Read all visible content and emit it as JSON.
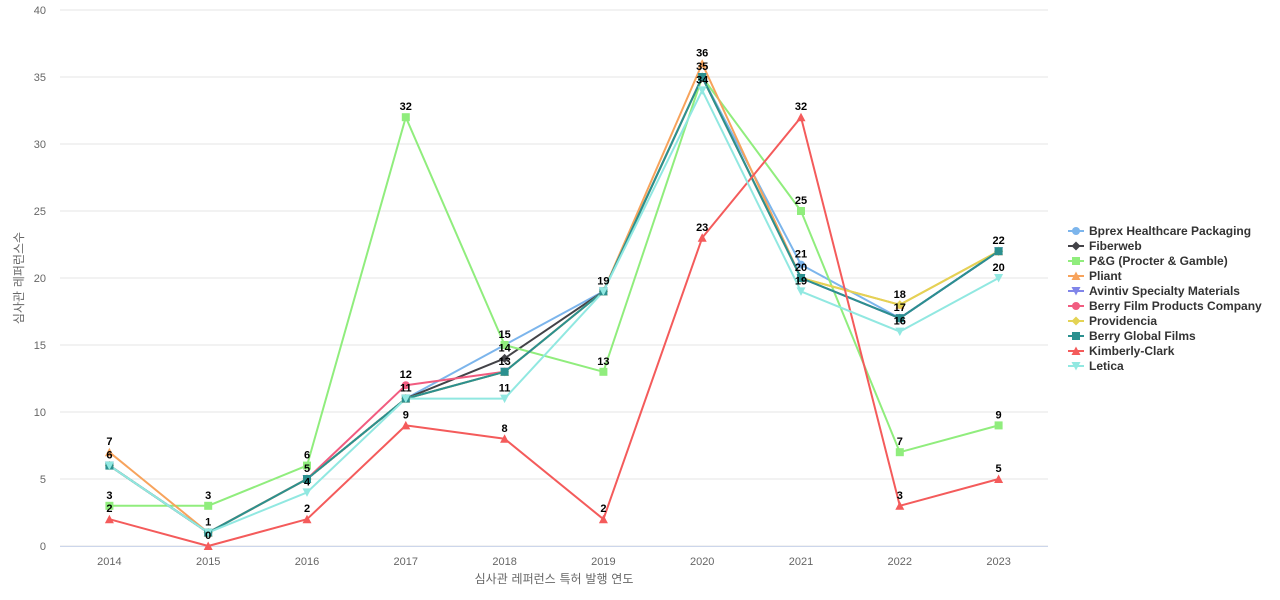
{
  "chart_data": {
    "type": "line",
    "title": "",
    "xlabel": "심사관 레퍼런스 특허 발행 연도",
    "ylabel": "심사관 레퍼런스수",
    "ylim": [
      0,
      40
    ],
    "yticks": [
      0,
      5,
      10,
      15,
      20,
      25,
      30,
      35,
      40
    ],
    "grid": true,
    "legend_position": "right",
    "categories": [
      "2014",
      "2015",
      "2016",
      "2017",
      "2018",
      "2019",
      "2020",
      "2021",
      "2022",
      "2023"
    ],
    "series": [
      {
        "name": "Bprex Healthcare Packaging",
        "color": "#7cb5ec",
        "marker": "circle",
        "values": [
          6,
          1,
          5,
          11,
          15,
          19,
          35,
          21,
          17,
          22
        ]
      },
      {
        "name": "Fiberweb",
        "color": "#434348",
        "marker": "diamond",
        "values": [
          6,
          1,
          5,
          11,
          14,
          19,
          35,
          20,
          17,
          22
        ]
      },
      {
        "name": "P&G (Procter & Gamble)",
        "color": "#90ed7d",
        "marker": "square",
        "values": [
          3,
          3,
          6,
          32,
          15,
          13,
          35,
          25,
          7,
          9
        ]
      },
      {
        "name": "Pliant",
        "color": "#f7a35c",
        "marker": "triangle",
        "values": [
          7,
          1,
          5,
          11,
          13,
          19,
          36,
          20,
          18,
          22
        ]
      },
      {
        "name": "Avintiv Specialty Materials",
        "color": "#8085e9",
        "marker": "triangle-down",
        "values": [
          6,
          1,
          5,
          11,
          13,
          19,
          35,
          20,
          17,
          22
        ]
      },
      {
        "name": "Berry Film Products Company",
        "color": "#f15c80",
        "marker": "circle",
        "values": [
          6,
          1,
          5,
          12,
          13,
          null,
          null,
          null,
          null,
          null
        ]
      },
      {
        "name": "Providencia",
        "color": "#e4d354",
        "marker": "diamond",
        "values": [
          6,
          1,
          5,
          11,
          13,
          19,
          35,
          20,
          18,
          22
        ]
      },
      {
        "name": "Berry Global Films",
        "color": "#2b908f",
        "marker": "square",
        "values": [
          6,
          1,
          5,
          11,
          13,
          19,
          35,
          20,
          17,
          22
        ]
      },
      {
        "name": "Kimberly-Clark",
        "color": "#f45b5b",
        "marker": "triangle",
        "values": [
          2,
          0,
          2,
          9,
          8,
          2,
          23,
          32,
          3,
          5
        ]
      },
      {
        "name": "Letica",
        "color": "#91e8e1",
        "marker": "triangle-down",
        "values": [
          6,
          1,
          4,
          11,
          11,
          19,
          34,
          19,
          16,
          20
        ]
      }
    ],
    "data_labels": [
      {
        "x": "2014",
        "value": 7
      },
      {
        "x": "2014",
        "value": 6
      },
      {
        "x": "2014",
        "value": 3
      },
      {
        "x": "2014",
        "value": 2
      },
      {
        "x": "2015",
        "value": 3
      },
      {
        "x": "2015",
        "value": 1
      },
      {
        "x": "2015",
        "value": 0
      },
      {
        "x": "2016",
        "value": 6
      },
      {
        "x": "2016",
        "value": 5
      },
      {
        "x": "2016",
        "value": 4
      },
      {
        "x": "2016",
        "value": 2
      },
      {
        "x": "2017",
        "value": 32
      },
      {
        "x": "2017",
        "value": 12
      },
      {
        "x": "2017",
        "value": 11
      },
      {
        "x": "2017",
        "value": 9
      },
      {
        "x": "2018",
        "value": 15
      },
      {
        "x": "2018",
        "value": 14
      },
      {
        "x": "2018",
        "value": 13
      },
      {
        "x": "2018",
        "value": 11
      },
      {
        "x": "2018",
        "value": 8
      },
      {
        "x": "2019",
        "value": 19
      },
      {
        "x": "2019",
        "value": 13
      },
      {
        "x": "2019",
        "value": 2
      },
      {
        "x": "2020",
        "value": 36
      },
      {
        "x": "2020",
        "value": 35
      },
      {
        "x": "2020",
        "value": 34
      },
      {
        "x": "2020",
        "value": 23
      },
      {
        "x": "2021",
        "value": 32
      },
      {
        "x": "2021",
        "value": 25
      },
      {
        "x": "2021",
        "value": 21
      },
      {
        "x": "2021",
        "value": 20
      },
      {
        "x": "2021",
        "value": 19
      },
      {
        "x": "2022",
        "value": 18
      },
      {
        "x": "2022",
        "value": 17
      },
      {
        "x": "2022",
        "value": 16
      },
      {
        "x": "2022",
        "value": 7
      },
      {
        "x": "2022",
        "value": 3
      },
      {
        "x": "2023",
        "value": 22
      },
      {
        "x": "2023",
        "value": 20
      },
      {
        "x": "2023",
        "value": 9
      },
      {
        "x": "2023",
        "value": 5
      }
    ]
  }
}
